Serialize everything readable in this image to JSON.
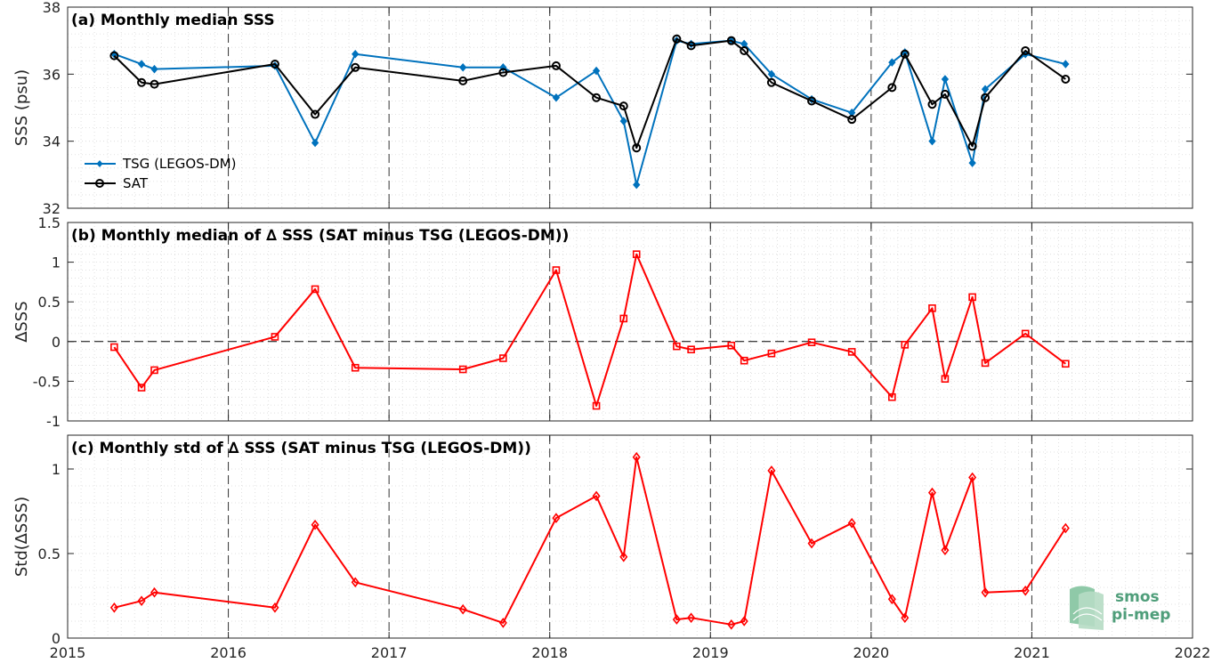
{
  "chart_data": {
    "type": "line",
    "x_axis": {
      "min": 2015,
      "max": 2022,
      "ticks": [
        "2015",
        "2016",
        "2017",
        "2018",
        "2019",
        "2020",
        "2021",
        "2022"
      ]
    },
    "panels": [
      {
        "id": "a",
        "title": "(a) Monthly median SSS",
        "ylabel": "SSS (psu)",
        "ylim": [
          32,
          38
        ],
        "yticks": [
          "32",
          "34",
          "36",
          "38"
        ],
        "zero_line": false,
        "legend": {
          "position": "bottom-left"
        },
        "series": [
          {
            "name": "TSG (LEGOS-DM)",
            "color": "#0072bd",
            "marker": "filled-diamond",
            "x": [
              2015.29,
              2015.46,
              2015.54,
              2016.29,
              2016.54,
              2016.79,
              2017.46,
              2017.71,
              2018.04,
              2018.29,
              2018.46,
              2018.54,
              2018.79,
              2018.88,
              2019.13,
              2019.21,
              2019.38,
              2019.63,
              2019.88,
              2020.13,
              2020.21,
              2020.38,
              2020.46,
              2020.63,
              2020.71,
              2020.96,
              2021.21
            ],
            "y": [
              36.6,
              36.3,
              36.15,
              36.25,
              33.95,
              36.6,
              36.2,
              36.2,
              35.3,
              36.1,
              34.6,
              32.7,
              37.0,
              36.9,
              37.0,
              36.9,
              36.0,
              35.25,
              34.85,
              36.35,
              36.65,
              34.0,
              35.85,
              33.35,
              35.55,
              36.6,
              36.3
            ]
          },
          {
            "name": "SAT",
            "color": "#000000",
            "marker": "open-circle",
            "x": [
              2015.29,
              2015.46,
              2015.54,
              2016.29,
              2016.54,
              2016.79,
              2017.46,
              2017.71,
              2018.04,
              2018.29,
              2018.46,
              2018.54,
              2018.79,
              2018.88,
              2019.13,
              2019.21,
              2019.38,
              2019.63,
              2019.88,
              2020.13,
              2020.21,
              2020.38,
              2020.46,
              2020.63,
              2020.71,
              2020.96,
              2021.21
            ],
            "y": [
              36.55,
              35.75,
              35.7,
              36.3,
              34.8,
              36.2,
              35.8,
              36.05,
              36.25,
              35.3,
              35.05,
              33.8,
              37.05,
              36.85,
              37.0,
              36.7,
              35.75,
              35.2,
              34.65,
              35.6,
              36.6,
              35.1,
              35.4,
              33.85,
              35.3,
              36.7,
              35.85
            ]
          }
        ]
      },
      {
        "id": "b",
        "title": "(b) Monthly median of ∆ SSS (SAT minus TSG (LEGOS-DM))",
        "ylabel": "∆SSS",
        "ylim": [
          -1,
          1.5
        ],
        "yticks": [
          "-1",
          "-0.5",
          "0",
          "0.5",
          "1",
          "1.5"
        ],
        "zero_line": true,
        "series": [
          {
            "name": "",
            "color": "#ff0000",
            "marker": "open-square",
            "x": [
              2015.29,
              2015.46,
              2015.54,
              2016.29,
              2016.54,
              2016.79,
              2017.46,
              2017.71,
              2018.04,
              2018.29,
              2018.46,
              2018.54,
              2018.79,
              2018.88,
              2019.13,
              2019.21,
              2019.38,
              2019.63,
              2019.88,
              2020.13,
              2020.21,
              2020.38,
              2020.46,
              2020.63,
              2020.71,
              2020.96,
              2021.21
            ],
            "y": [
              -0.07,
              -0.58,
              -0.36,
              0.06,
              0.66,
              -0.33,
              -0.35,
              -0.21,
              0.9,
              -0.81,
              0.29,
              1.1,
              -0.06,
              -0.1,
              -0.05,
              -0.24,
              -0.15,
              -0.01,
              -0.13,
              -0.7,
              -0.04,
              0.42,
              -0.47,
              0.56,
              -0.27,
              0.1,
              -0.28
            ]
          }
        ]
      },
      {
        "id": "c",
        "title": "(c) Monthly std of ∆ SSS (SAT minus TSG (LEGOS-DM))",
        "ylabel": "Std(∆SSS)",
        "ylim": [
          0,
          1.2
        ],
        "yticks": [
          "0",
          "0.5",
          "1"
        ],
        "zero_line": false,
        "series": [
          {
            "name": "",
            "color": "#ff0000",
            "marker": "open-diamond",
            "x": [
              2015.29,
              2015.46,
              2015.54,
              2016.29,
              2016.54,
              2016.79,
              2017.46,
              2017.71,
              2018.04,
              2018.29,
              2018.46,
              2018.54,
              2018.79,
              2018.88,
              2019.13,
              2019.21,
              2019.38,
              2019.63,
              2019.88,
              2020.13,
              2020.21,
              2020.38,
              2020.46,
              2020.63,
              2020.71,
              2020.96,
              2021.21
            ],
            "y": [
              0.18,
              0.22,
              0.27,
              0.18,
              0.67,
              0.33,
              0.17,
              0.09,
              0.71,
              0.84,
              0.48,
              1.07,
              0.11,
              0.12,
              0.08,
              0.1,
              0.99,
              0.56,
              0.68,
              0.23,
              0.12,
              0.86,
              0.52,
              0.95,
              0.27,
              0.28,
              0.65
            ]
          }
        ]
      }
    ]
  },
  "logo": {
    "line1": "smos",
    "line2": "pi-mep",
    "color": "#4f9e7a"
  }
}
